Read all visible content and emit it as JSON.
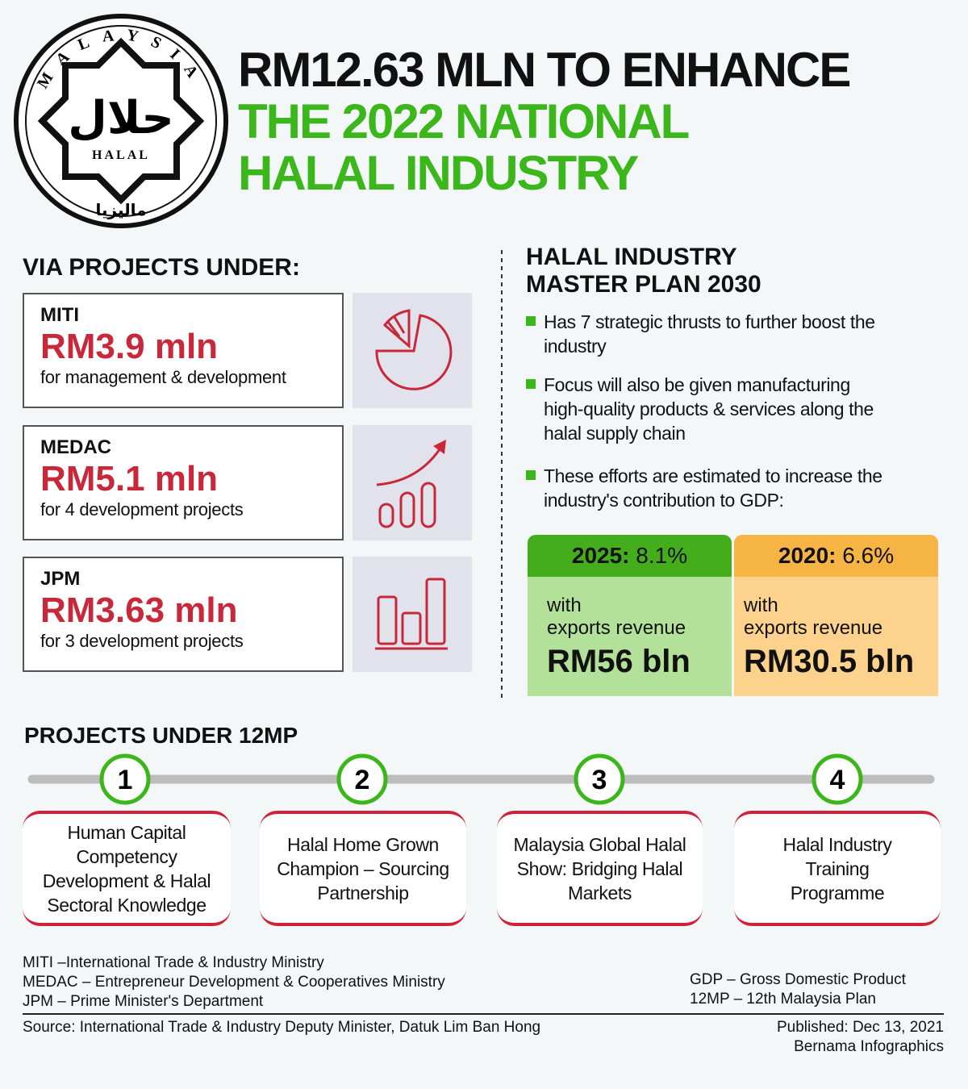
{
  "header": {
    "logo_top": "MALAYSIA",
    "logo_center": "حلال",
    "logo_label": "HALAL",
    "logo_bottom": "ماليزيا",
    "title_line1": "RM12.63 MLN TO ENHANCE",
    "title_line2": "THE 2022 NATIONAL",
    "title_line3": "HALAL INDUSTRY"
  },
  "projects": {
    "heading": "VIA PROJECTS UNDER:",
    "items": [
      {
        "agency": "MITI",
        "amount": "RM3.9 mln",
        "purpose": "for management & development"
      },
      {
        "agency": "MEDAC",
        "amount": "RM5.1 mln",
        "purpose": "for 4 development projects"
      },
      {
        "agency": "JPM",
        "amount": "RM3.63 mln",
        "purpose": "for 3 development projects"
      }
    ]
  },
  "master_plan": {
    "heading_line1": "HALAL INDUSTRY",
    "heading_line2": "MASTER PLAN 2030",
    "bullets": [
      "Has 7 strategic thrusts to further boost the industry",
      "Focus will also be given manufacturing high-quality products & services along the halal supply chain",
      "These efforts are estimated to increase the industry's contribution to GDP:"
    ],
    "cards": [
      {
        "year": "2025:",
        "value": "8.1%",
        "with": "with",
        "exports": "exports revenue",
        "amount": "RM56 bln"
      },
      {
        "year": "2020:",
        "value": "6.6%",
        "with": "with",
        "exports": "exports revenue",
        "amount": "RM30.5 bln"
      }
    ]
  },
  "twelve_mp": {
    "heading": "PROJECTS UNDER 12MP",
    "steps": [
      {
        "number": "1",
        "label": "Human Capital Competency Development & Halal Sectoral Knowledge"
      },
      {
        "number": "2",
        "label": "Halal Home Grown Champion – Sourcing Partnership"
      },
      {
        "number": "3",
        "label": "Malaysia Global Halal Show: Bridging Halal Markets"
      },
      {
        "number": "4",
        "label": "Halal Industry Training Programme"
      }
    ]
  },
  "footer": {
    "abbreviations_left": [
      "MITI –International Trade & Industry Ministry",
      "MEDAC – Entrepreneur Development & Cooperatives Ministry",
      "JPM – Prime Minister's Department"
    ],
    "abbreviations_right": [
      "GDP – Gross Domestic Product",
      "12MP – 12th Malaysia Plan"
    ],
    "source": "Source: International Trade & Industry Deputy Minister, Datuk Lim Ban Hong",
    "published": "Published: Dec 13, 2021",
    "credit": "Bernama Infographics"
  }
}
